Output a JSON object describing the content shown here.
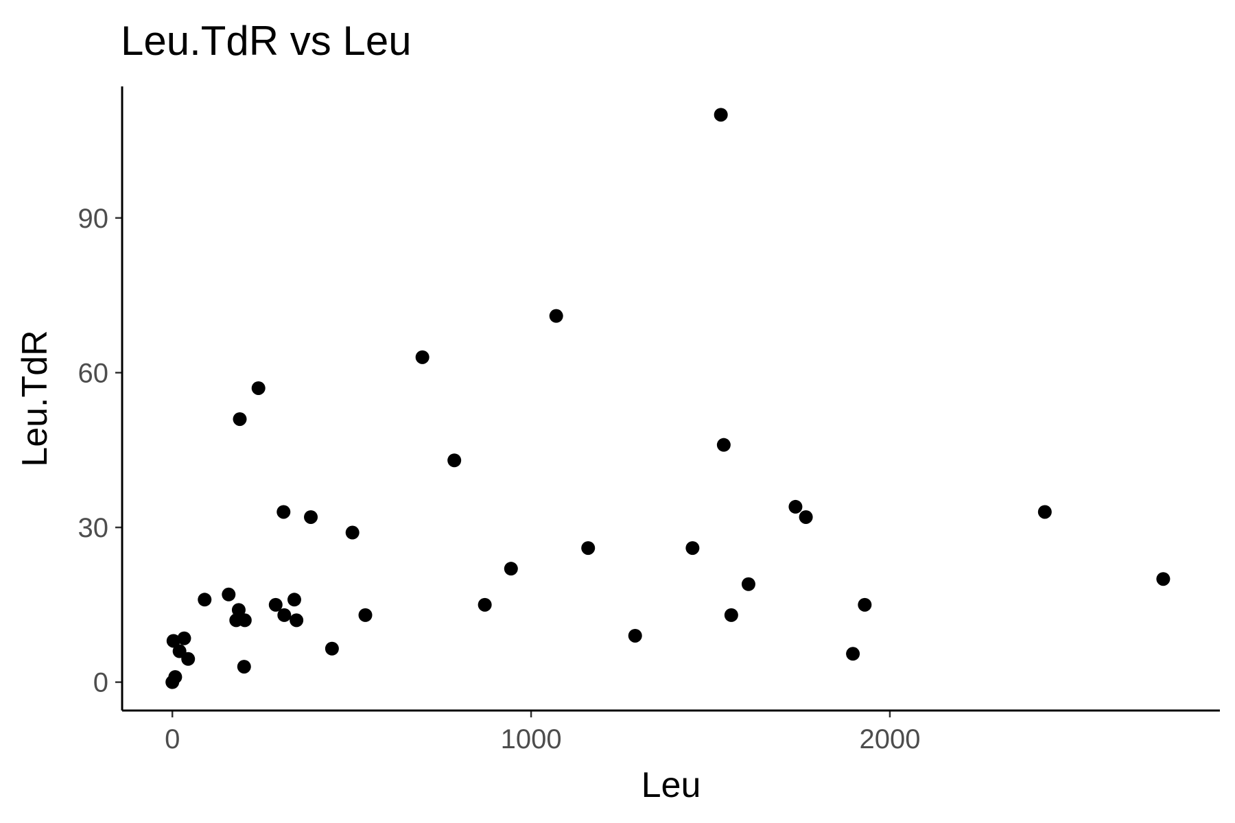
{
  "chart_data": {
    "type": "scatter",
    "title": "Leu.TdR vs Leu",
    "xlabel": "Leu",
    "ylabel": "Leu.TdR",
    "xlim": [
      -140,
      2920
    ],
    "ylim": [
      -5.5,
      115.5
    ],
    "x_ticks": [
      0,
      1000,
      2000
    ],
    "x_tick_labels": [
      "0",
      "1000",
      "2000"
    ],
    "y_ticks": [
      0,
      30,
      60,
      90
    ],
    "y_tick_labels": [
      "0",
      "30",
      "60",
      "90"
    ],
    "grid": false,
    "legend": "none",
    "point_color": "#000000",
    "series": [
      {
        "points": [
          [
            0,
            0
          ],
          [
            3,
            8
          ],
          [
            8,
            1
          ],
          [
            20,
            6
          ],
          [
            33,
            8.5
          ],
          [
            44,
            4.5
          ],
          [
            90,
            16
          ],
          [
            157,
            17
          ],
          [
            178,
            12
          ],
          [
            185,
            14
          ],
          [
            188,
            51
          ],
          [
            200,
            3
          ],
          [
            202,
            12
          ],
          [
            240,
            57
          ],
          [
            288,
            15
          ],
          [
            310,
            33
          ],
          [
            312,
            13
          ],
          [
            340,
            16
          ],
          [
            346,
            12
          ],
          [
            386,
            32
          ],
          [
            445,
            6.5
          ],
          [
            502,
            29
          ],
          [
            538,
            13
          ],
          [
            697,
            63
          ],
          [
            786,
            43
          ],
          [
            871,
            15
          ],
          [
            944,
            22
          ],
          [
            1070,
            71
          ],
          [
            1159,
            26
          ],
          [
            1290,
            9
          ],
          [
            1450,
            26
          ],
          [
            1529,
            110
          ],
          [
            1537,
            46
          ],
          [
            1558,
            13
          ],
          [
            1606,
            19
          ],
          [
            1737,
            34
          ],
          [
            1766,
            32
          ],
          [
            1897,
            5.5
          ],
          [
            1930,
            15
          ],
          [
            2432,
            33
          ],
          [
            2762,
            20
          ]
        ]
      }
    ]
  }
}
